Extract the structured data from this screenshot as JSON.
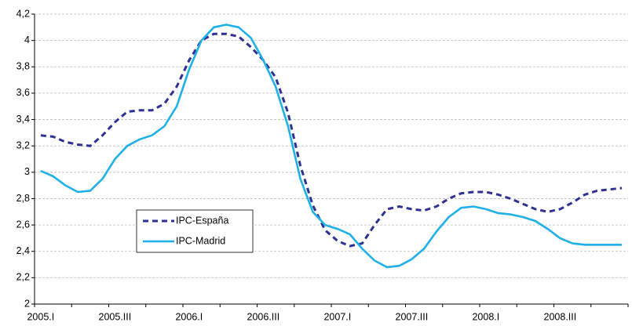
{
  "chart_data": {
    "type": "line",
    "categories": [
      "2005.I",
      null,
      null,
      null,
      null,
      null,
      "2005.III",
      null,
      null,
      null,
      null,
      null,
      "2006.I",
      null,
      null,
      null,
      null,
      null,
      "2006.III",
      null,
      null,
      null,
      null,
      null,
      "2007.I",
      null,
      null,
      null,
      null,
      null,
      "2007.III",
      null,
      null,
      null,
      null,
      null,
      "2008.I",
      null,
      null,
      null,
      null,
      null,
      "2008.III",
      null,
      null,
      null,
      null,
      null
    ],
    "series": [
      {
        "name": "IPC-España",
        "color": "#2e3192",
        "dashed": true,
        "values": [
          3.28,
          3.27,
          3.23,
          3.21,
          3.2,
          3.28,
          3.38,
          3.46,
          3.47,
          3.47,
          3.52,
          3.65,
          3.85,
          4.0,
          4.05,
          4.05,
          4.03,
          3.95,
          3.85,
          3.72,
          3.45,
          3.05,
          2.75,
          2.56,
          2.48,
          2.44,
          2.46,
          2.6,
          2.72,
          2.74,
          2.72,
          2.71,
          2.74,
          2.8,
          2.84,
          2.85,
          2.85,
          2.83,
          2.8,
          2.76,
          2.72,
          2.7,
          2.72,
          2.77,
          2.83,
          2.86,
          2.87,
          2.88
        ]
      },
      {
        "name": "IPC-Madrid",
        "color": "#1eb0e6",
        "dashed": false,
        "values": [
          3.01,
          2.97,
          2.9,
          2.85,
          2.86,
          2.95,
          3.1,
          3.2,
          3.25,
          3.28,
          3.35,
          3.5,
          3.78,
          4.0,
          4.1,
          4.12,
          4.1,
          4.02,
          3.85,
          3.65,
          3.35,
          2.95,
          2.7,
          2.6,
          2.57,
          2.53,
          2.42,
          2.33,
          2.28,
          2.29,
          2.34,
          2.42,
          2.55,
          2.66,
          2.73,
          2.74,
          2.72,
          2.69,
          2.68,
          2.66,
          2.63,
          2.57,
          2.5,
          2.46,
          2.45,
          2.45,
          2.45,
          2.45
        ]
      }
    ],
    "ylim": [
      2,
      4.2
    ],
    "yticks": [
      2,
      {
        "value": 2.2,
        "label": "2,2"
      },
      {
        "value": 2.4,
        "label": "2,4"
      },
      {
        "value": 2.6,
        "label": "2,6"
      },
      {
        "value": 2.8,
        "label": "2,8"
      },
      3,
      {
        "value": 3.2,
        "label": "3,2"
      },
      {
        "value": 3.4,
        "label": "3,4"
      },
      {
        "value": 3.6,
        "label": "3,6"
      },
      {
        "value": 3.8,
        "label": "3,8"
      },
      4,
      {
        "value": 4.2,
        "label": "4,2"
      }
    ],
    "grid": true
  }
}
